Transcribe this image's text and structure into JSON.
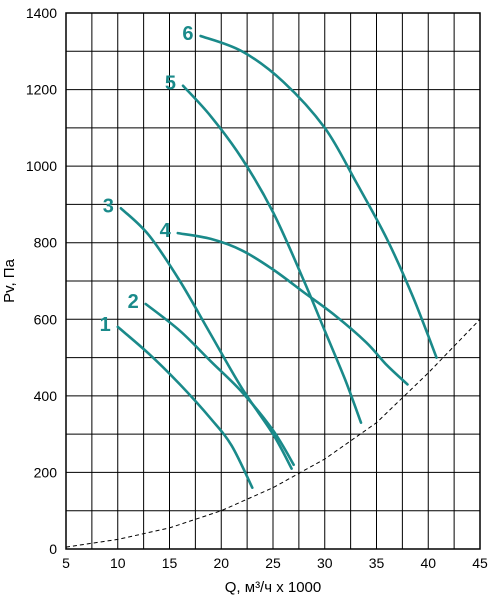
{
  "chart_data": {
    "type": "line",
    "xlabel": "Q, м³/ч x 1000",
    "ylabel": "Pv, Па",
    "xlim": [
      5,
      45
    ],
    "ylim": [
      0,
      1400
    ],
    "x_ticks": [
      "5",
      "10",
      "15",
      "20",
      "25",
      "30",
      "35",
      "40",
      "45"
    ],
    "y_ticks": [
      "0",
      "200",
      "400",
      "600",
      "800",
      "1000",
      "1200",
      "1400"
    ],
    "grid": true,
    "curve_color": "#1a8a8a",
    "series": [
      {
        "name": "1",
        "points": [
          [
            10,
            580
          ],
          [
            13,
            510
          ],
          [
            16,
            430
          ],
          [
            19,
            340
          ],
          [
            21,
            270
          ],
          [
            23,
            160
          ]
        ]
      },
      {
        "name": "2",
        "points": [
          [
            12.7,
            640
          ],
          [
            16,
            570
          ],
          [
            19,
            490
          ],
          [
            22,
            410
          ],
          [
            25,
            310
          ],
          [
            27,
            220
          ]
        ]
      },
      {
        "name": "3",
        "points": [
          [
            10.3,
            890
          ],
          [
            13,
            820
          ],
          [
            16,
            700
          ],
          [
            19,
            560
          ],
          [
            22,
            420
          ],
          [
            25,
            300
          ],
          [
            26.8,
            210
          ]
        ]
      },
      {
        "name": "4",
        "points": [
          [
            15.8,
            825
          ],
          [
            19,
            810
          ],
          [
            22,
            780
          ],
          [
            25,
            730
          ],
          [
            28,
            670
          ],
          [
            31,
            610
          ],
          [
            34,
            540
          ],
          [
            36,
            480
          ],
          [
            38,
            430
          ]
        ]
      },
      {
        "name": "5",
        "points": [
          [
            16.3,
            1210
          ],
          [
            19,
            1130
          ],
          [
            22,
            1020
          ],
          [
            25,
            880
          ],
          [
            28,
            700
          ],
          [
            30,
            570
          ],
          [
            32,
            440
          ],
          [
            33.5,
            330
          ]
        ]
      },
      {
        "name": "6",
        "points": [
          [
            18,
            1340
          ],
          [
            22,
            1300
          ],
          [
            26,
            1220
          ],
          [
            30,
            1100
          ],
          [
            33,
            960
          ],
          [
            36,
            810
          ],
          [
            38.5,
            660
          ],
          [
            40.8,
            500
          ]
        ]
      }
    ],
    "system_curve": {
      "style": "dashed",
      "points": [
        [
          5,
          5
        ],
        [
          10,
          25
        ],
        [
          15,
          55
        ],
        [
          20,
          100
        ],
        [
          25,
          160
        ],
        [
          30,
          235
        ],
        [
          35,
          330
        ],
        [
          40,
          460
        ],
        [
          45,
          600
        ]
      ]
    }
  }
}
